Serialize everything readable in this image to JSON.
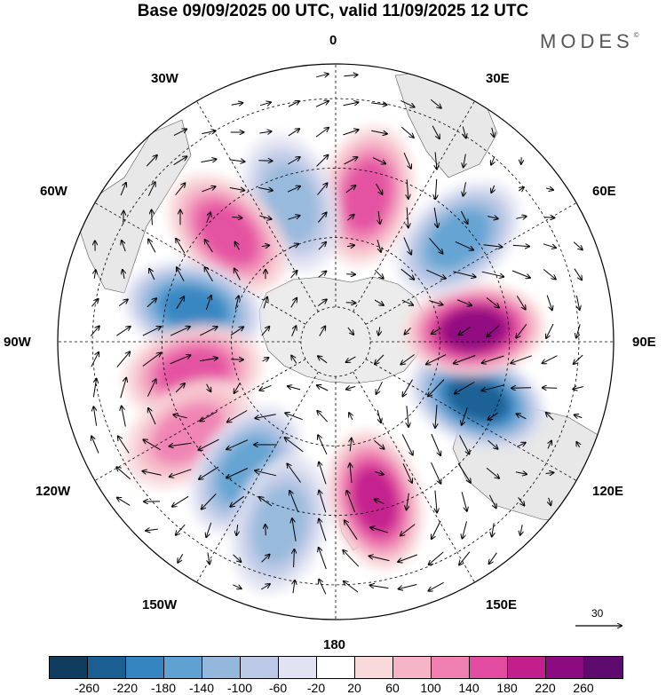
{
  "title": "Base 09/09/2025 00 UTC, valid 11/09/2025 12 UTC",
  "logo": "MODES",
  "logo_mark": "©",
  "longitude_labels": {
    "lon_0": "0",
    "lon_30e": "30E",
    "lon_60e": "60E",
    "lon_90e": "90E",
    "lon_120e": "120E",
    "lon_150e": "150E",
    "lon_180": "180",
    "lon_150w": "150W",
    "lon_120w": "120W",
    "lon_90w": "90W",
    "lon_60w": "60W",
    "lon_30w": "30W"
  },
  "reference_vector": {
    "label": "30"
  },
  "colorbar": {
    "colors": [
      "#0f3c5f",
      "#1b5e91",
      "#3484c0",
      "#5fa2d2",
      "#93b8dc",
      "#bcc9e6",
      "#e2e3f2",
      "#ffffff",
      "#f8dadb",
      "#f5b5c6",
      "#f07fb2",
      "#e24ca0",
      "#c01f8c",
      "#8c0b80",
      "#5d0b6e"
    ],
    "labels": [
      "-260",
      "-220",
      "-180",
      "-140",
      "-100",
      "-60",
      "-20",
      "20",
      "60",
      "100",
      "140",
      "180",
      "220",
      "260"
    ]
  },
  "anomaly_centers": [
    {
      "name": "high-30e",
      "lon": 12,
      "lat": -47,
      "value": 150
    },
    {
      "name": "low-10w",
      "lon": -18,
      "lat": -48,
      "value": -120
    },
    {
      "name": "high-45w",
      "lon": -45,
      "lat": -46,
      "value": 170
    },
    {
      "name": "low-75w",
      "lon": -77,
      "lat": -48,
      "value": -190
    },
    {
      "name": "high-100w",
      "lon": -102,
      "lat": -48,
      "value": 170
    },
    {
      "name": "high-125w",
      "lon": -122,
      "lat": -40,
      "value": 110
    },
    {
      "name": "low-140w",
      "lon": -145,
      "lat": -45,
      "value": -140
    },
    {
      "name": "low-170w",
      "lon": -163,
      "lat": -35,
      "value": -130
    },
    {
      "name": "high-170e",
      "lon": 166,
      "lat": -43,
      "value": 190
    },
    {
      "name": "low-120e",
      "lon": 112,
      "lat": -46,
      "value": -240
    },
    {
      "name": "high-90e",
      "lon": 85,
      "lat": -50,
      "value": 230
    },
    {
      "name": "low-55e",
      "lon": 50,
      "lat": -44,
      "value": -160
    }
  ]
}
